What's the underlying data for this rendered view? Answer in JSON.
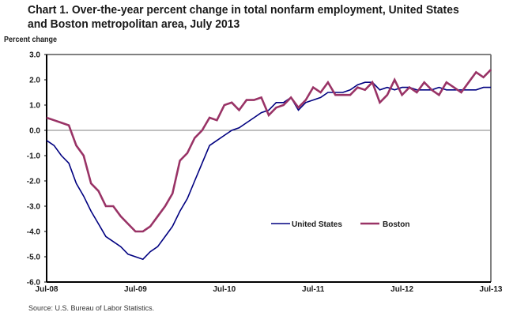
{
  "chart_data": {
    "type": "line",
    "title": "Chart 1. Over-the-year percent change in total nonfarm employment, United States and Boston metropolitan area, July 2013",
    "ylabel": "Percent change",
    "xlabel": "",
    "ylim": [
      -6.0,
      3.0
    ],
    "yticks": [
      "3.0",
      "2.0",
      "1.0",
      "0.0",
      "-1.0",
      "-2.0",
      "-3.0",
      "-4.0",
      "-5.0",
      "-6.0"
    ],
    "ytick_values": [
      3,
      2,
      1,
      0,
      -1,
      -2,
      -3,
      -4,
      -5,
      -6
    ],
    "xtick_labels": [
      "Jul-08",
      "Jul-09",
      "Jul-10",
      "Jul-11",
      "Jul-12",
      "Jul-13"
    ],
    "xtick_month_index": [
      0,
      12,
      24,
      36,
      48,
      60
    ],
    "x_start": "Jul-08",
    "x_end": "Jul-13",
    "months_count": 61,
    "legend_position": "bottom-right",
    "grid": "horizontal lines at 3.0 and 0.0",
    "series": [
      {
        "name": "United States",
        "color": "#000080",
        "values": [
          -0.4,
          -0.6,
          -1.0,
          -1.3,
          -2.1,
          -2.6,
          -3.2,
          -3.7,
          -4.2,
          -4.4,
          -4.6,
          -4.9,
          -5.0,
          -5.1,
          -4.8,
          -4.6,
          -4.2,
          -3.8,
          -3.2,
          -2.7,
          -2.0,
          -1.3,
          -0.6,
          -0.4,
          -0.2,
          0.0,
          0.1,
          0.3,
          0.5,
          0.7,
          0.8,
          1.1,
          1.1,
          1.3,
          0.8,
          1.1,
          1.2,
          1.3,
          1.5,
          1.5,
          1.5,
          1.6,
          1.8,
          1.9,
          1.9,
          1.6,
          1.7,
          1.6,
          1.7,
          1.7,
          1.6,
          1.6,
          1.6,
          1.7,
          1.6,
          1.6,
          1.6,
          1.6,
          1.6,
          1.7,
          1.7
        ]
      },
      {
        "name": "Boston",
        "color": "#993366",
        "values": [
          0.5,
          0.4,
          0.3,
          0.2,
          -0.6,
          -1.0,
          -2.1,
          -2.4,
          -3.0,
          -3.0,
          -3.4,
          -3.7,
          -4.0,
          -4.0,
          -3.8,
          -3.4,
          -3.0,
          -2.5,
          -1.2,
          -0.9,
          -0.3,
          0.0,
          0.5,
          0.4,
          1.0,
          1.1,
          0.8,
          1.2,
          1.2,
          1.3,
          0.6,
          0.9,
          1.0,
          1.3,
          0.9,
          1.2,
          1.7,
          1.5,
          1.9,
          1.4,
          1.4,
          1.4,
          1.7,
          1.6,
          1.9,
          1.1,
          1.4,
          2.0,
          1.4,
          1.7,
          1.5,
          1.9,
          1.6,
          1.4,
          1.9,
          1.7,
          1.5,
          1.9,
          2.3,
          2.1,
          2.4
        ]
      }
    ],
    "source": "Source: U.S. Bureau of Labor Statistics."
  }
}
